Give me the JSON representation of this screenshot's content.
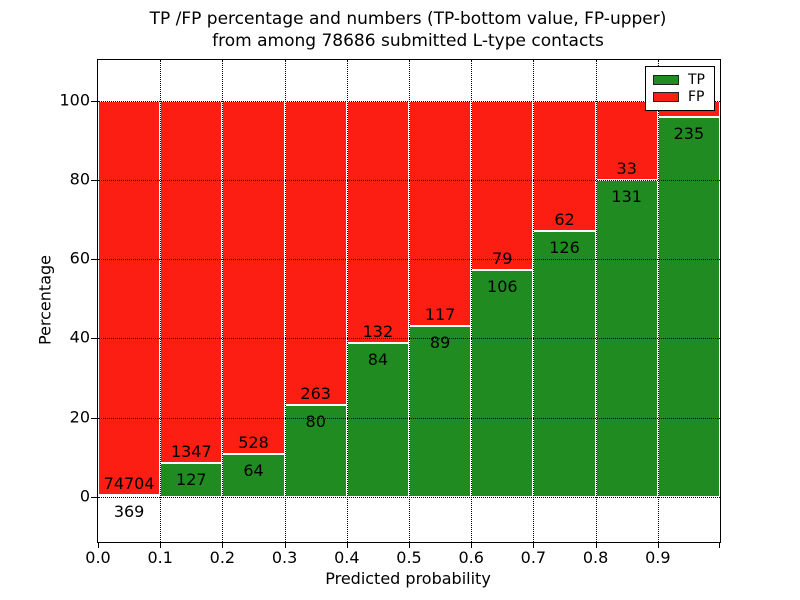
{
  "figure": {
    "title_line1": "TP /FP percentage and numbers (TP-bottom value, FP-upper)",
    "title_line2": "from among 78686 submitted L-type contacts"
  },
  "chart_data": {
    "type": "bar",
    "stacked": true,
    "title": "TP /FP percentage and numbers (TP-bottom value, FP-upper) from among 78686 submitted L-type contacts",
    "xlabel": "Predicted probability",
    "ylabel": "Percentage",
    "x_tick_labels": [
      "0.0",
      "0.1",
      "0.2",
      "0.3",
      "0.4",
      "0.5",
      "0.6",
      "0.7",
      "0.8",
      "0.9"
    ],
    "y_tick_values": [
      0,
      20,
      40,
      60,
      80,
      100
    ],
    "xlim": [
      0.0,
      1.0
    ],
    "ylim": [
      -11.3,
      110.3
    ],
    "bin_width": 0.1,
    "grid": true,
    "categories": [
      "0.0-0.1",
      "0.1-0.2",
      "0.2-0.3",
      "0.3-0.4",
      "0.4-0.5",
      "0.5-0.6",
      "0.6-0.7",
      "0.7-0.8",
      "0.8-0.9",
      "0.9-1.0"
    ],
    "series": [
      {
        "name": "TP",
        "color": "#208b20",
        "values": [
          369,
          127,
          64,
          80,
          84,
          89,
          106,
          126,
          131,
          235
        ]
      },
      {
        "name": "FP",
        "color": "#fc1d13",
        "values": [
          74704,
          1347,
          528,
          263,
          132,
          117,
          79,
          62,
          33,
          null
        ]
      }
    ],
    "tp_percent": [
      0.5,
      8.6,
      10.8,
      23.3,
      38.9,
      43.2,
      57.3,
      67.0,
      79.9,
      95.9
    ],
    "bar_labels": {
      "fp": [
        "74704",
        "1347",
        "528",
        "263",
        "132",
        "117",
        "79",
        "62",
        "33",
        ""
      ],
      "tp": [
        "369",
        "127",
        "64",
        "80",
        "84",
        "89",
        "106",
        "126",
        "131",
        "235"
      ]
    },
    "legend": {
      "position": "upper right",
      "entries": [
        {
          "label": "TP",
          "color": "#208b20"
        },
        {
          "label": "FP",
          "color": "#fc1d13"
        }
      ]
    }
  }
}
